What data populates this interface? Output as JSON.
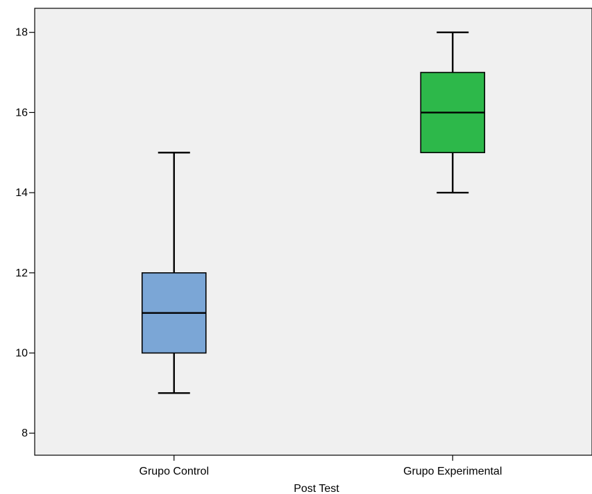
{
  "chart_data": {
    "type": "boxplot",
    "xlabel": "Post Test",
    "ylabel": "",
    "ylim": [
      7.45,
      18.6
    ],
    "yticks": [
      8,
      10,
      12,
      14,
      16,
      18
    ],
    "yticklabels": [
      "8",
      "10",
      "12",
      "14",
      "16",
      "18"
    ],
    "grid": false,
    "plot_background": "#f0f0f0",
    "categories": [
      "Grupo Control",
      "Grupo Experimental"
    ],
    "boxes": [
      {
        "min": 9,
        "q1": 10,
        "median": 11,
        "q3": 12,
        "max": 15,
        "color": "#7ba6d6"
      },
      {
        "min": 14,
        "q1": 15,
        "median": 16,
        "q3": 17,
        "max": 18,
        "color": "#2db84a"
      }
    ]
  }
}
